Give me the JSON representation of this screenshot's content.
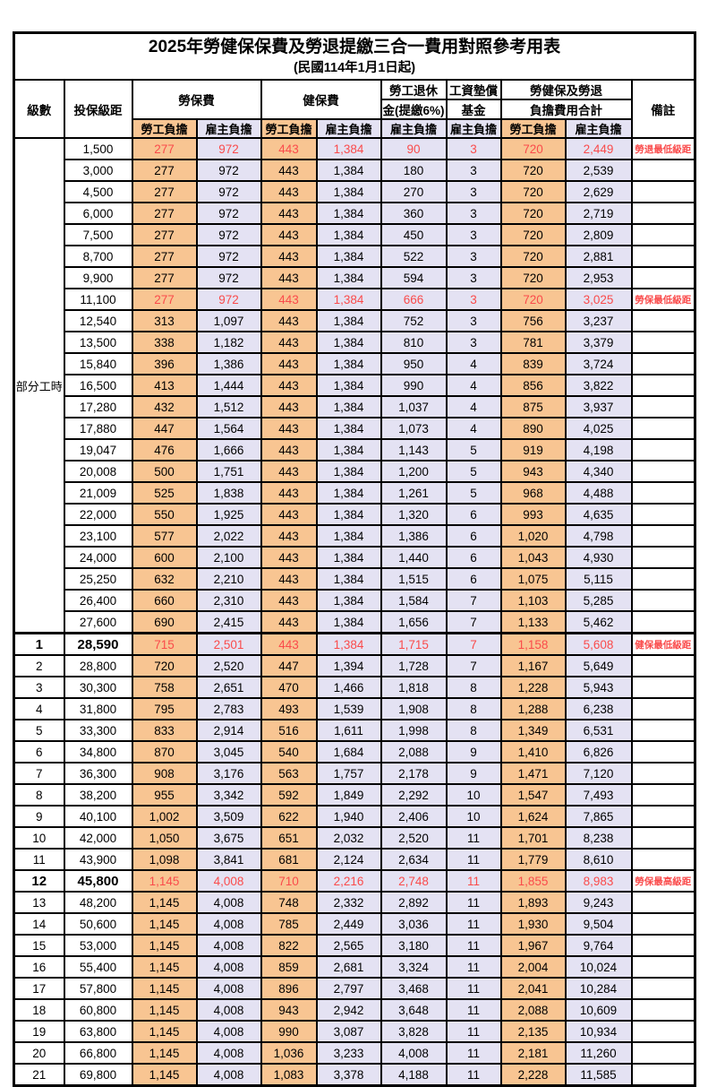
{
  "title": "2025年勞健保保費及勞退提繳三合一費用對照參考用表",
  "subtitle": "(民國114年1月1日起)",
  "colors": {
    "worker_bg": "#F8C592",
    "employer_bg": "#E4E2F3",
    "red_text": "#FA4B4B",
    "border": "#000000"
  },
  "header": {
    "level": "級數",
    "bracket": "投保級距",
    "labor": "勞保費",
    "health": "健保費",
    "pension_line1": "勞工退休",
    "pension_line2": "金(提繳6%)",
    "wage_fund_line1": "工資墊償",
    "wage_fund_line2": "基金",
    "total_line1": "勞健保及勞退",
    "total_line2": "負擔費用合計",
    "worker": "勞工負擔",
    "employer": "雇主負擔",
    "note": "備註"
  },
  "table": {
    "part_time_label": "部分工時",
    "value_columns": [
      "勞保費勞工負擔",
      "勞保費雇主負擔",
      "健保費勞工負擔",
      "健保費雇主負擔",
      "勞工退休金雇主負擔",
      "工資墊償基金雇主負擔",
      "合計勞工負擔",
      "合計雇主負擔"
    ],
    "rows": [
      {
        "lv": "",
        "br": "1,500",
        "v": [
          "277",
          "972",
          "443",
          "1,384",
          "90",
          "3",
          "720",
          "2,449"
        ],
        "note": "勞退最低級距",
        "red": true
      },
      {
        "lv": "",
        "br": "3,000",
        "v": [
          "277",
          "972",
          "443",
          "1,384",
          "180",
          "3",
          "720",
          "2,539"
        ],
        "note": ""
      },
      {
        "lv": "",
        "br": "4,500",
        "v": [
          "277",
          "972",
          "443",
          "1,384",
          "270",
          "3",
          "720",
          "2,629"
        ],
        "note": ""
      },
      {
        "lv": "",
        "br": "6,000",
        "v": [
          "277",
          "972",
          "443",
          "1,384",
          "360",
          "3",
          "720",
          "2,719"
        ],
        "note": ""
      },
      {
        "lv": "",
        "br": "7,500",
        "v": [
          "277",
          "972",
          "443",
          "1,384",
          "450",
          "3",
          "720",
          "2,809"
        ],
        "note": ""
      },
      {
        "lv": "",
        "br": "8,700",
        "v": [
          "277",
          "972",
          "443",
          "1,384",
          "522",
          "3",
          "720",
          "2,881"
        ],
        "note": ""
      },
      {
        "lv": "",
        "br": "9,900",
        "v": [
          "277",
          "972",
          "443",
          "1,384",
          "594",
          "3",
          "720",
          "2,953"
        ],
        "note": ""
      },
      {
        "lv": "",
        "br": "11,100",
        "v": [
          "277",
          "972",
          "443",
          "1,384",
          "666",
          "3",
          "720",
          "3,025"
        ],
        "note": "勞保最低級距",
        "red": true
      },
      {
        "lv": "",
        "br": "12,540",
        "v": [
          "313",
          "1,097",
          "443",
          "1,384",
          "752",
          "3",
          "756",
          "3,237"
        ],
        "note": ""
      },
      {
        "lv": "",
        "br": "13,500",
        "v": [
          "338",
          "1,182",
          "443",
          "1,384",
          "810",
          "3",
          "781",
          "3,379"
        ],
        "note": ""
      },
      {
        "lv": "",
        "br": "15,840",
        "v": [
          "396",
          "1,386",
          "443",
          "1,384",
          "950",
          "4",
          "839",
          "3,724"
        ],
        "note": ""
      },
      {
        "lv": "",
        "br": "16,500",
        "v": [
          "413",
          "1,444",
          "443",
          "1,384",
          "990",
          "4",
          "856",
          "3,822"
        ],
        "note": ""
      },
      {
        "lv": "",
        "br": "17,280",
        "v": [
          "432",
          "1,512",
          "443",
          "1,384",
          "1,037",
          "4",
          "875",
          "3,937"
        ],
        "note": ""
      },
      {
        "lv": "",
        "br": "17,880",
        "v": [
          "447",
          "1,564",
          "443",
          "1,384",
          "1,073",
          "4",
          "890",
          "4,025"
        ],
        "note": ""
      },
      {
        "lv": "",
        "br": "19,047",
        "v": [
          "476",
          "1,666",
          "443",
          "1,384",
          "1,143",
          "5",
          "919",
          "4,198"
        ],
        "note": ""
      },
      {
        "lv": "",
        "br": "20,008",
        "v": [
          "500",
          "1,751",
          "443",
          "1,384",
          "1,200",
          "5",
          "943",
          "4,340"
        ],
        "note": ""
      },
      {
        "lv": "",
        "br": "21,009",
        "v": [
          "525",
          "1,838",
          "443",
          "1,384",
          "1,261",
          "5",
          "968",
          "4,488"
        ],
        "note": ""
      },
      {
        "lv": "",
        "br": "22,000",
        "v": [
          "550",
          "1,925",
          "443",
          "1,384",
          "1,320",
          "6",
          "993",
          "4,635"
        ],
        "note": ""
      },
      {
        "lv": "",
        "br": "23,100",
        "v": [
          "577",
          "2,022",
          "443",
          "1,384",
          "1,386",
          "6",
          "1,020",
          "4,798"
        ],
        "note": ""
      },
      {
        "lv": "",
        "br": "24,000",
        "v": [
          "600",
          "2,100",
          "443",
          "1,384",
          "1,440",
          "6",
          "1,043",
          "4,930"
        ],
        "note": ""
      },
      {
        "lv": "",
        "br": "25,250",
        "v": [
          "632",
          "2,210",
          "443",
          "1,384",
          "1,515",
          "6",
          "1,075",
          "5,115"
        ],
        "note": ""
      },
      {
        "lv": "",
        "br": "26,400",
        "v": [
          "660",
          "2,310",
          "443",
          "1,384",
          "1,584",
          "7",
          "1,103",
          "5,285"
        ],
        "note": ""
      },
      {
        "lv": "",
        "br": "27,600",
        "v": [
          "690",
          "2,415",
          "443",
          "1,384",
          "1,656",
          "7",
          "1,133",
          "5,462"
        ],
        "note": ""
      },
      {
        "lv": "1",
        "br": "28,590",
        "v": [
          "715",
          "2,501",
          "443",
          "1,384",
          "1,715",
          "7",
          "1,158",
          "5,608"
        ],
        "note": "健保最低級距",
        "red": true,
        "hl": true,
        "thick": true
      },
      {
        "lv": "2",
        "br": "28,800",
        "v": [
          "720",
          "2,520",
          "447",
          "1,394",
          "1,728",
          "7",
          "1,167",
          "5,649"
        ],
        "note": ""
      },
      {
        "lv": "3",
        "br": "30,300",
        "v": [
          "758",
          "2,651",
          "470",
          "1,466",
          "1,818",
          "8",
          "1,228",
          "5,943"
        ],
        "note": ""
      },
      {
        "lv": "4",
        "br": "31,800",
        "v": [
          "795",
          "2,783",
          "493",
          "1,539",
          "1,908",
          "8",
          "1,288",
          "6,238"
        ],
        "note": ""
      },
      {
        "lv": "5",
        "br": "33,300",
        "v": [
          "833",
          "2,914",
          "516",
          "1,611",
          "1,998",
          "8",
          "1,349",
          "6,531"
        ],
        "note": ""
      },
      {
        "lv": "6",
        "br": "34,800",
        "v": [
          "870",
          "3,045",
          "540",
          "1,684",
          "2,088",
          "9",
          "1,410",
          "6,826"
        ],
        "note": ""
      },
      {
        "lv": "7",
        "br": "36,300",
        "v": [
          "908",
          "3,176",
          "563",
          "1,757",
          "2,178",
          "9",
          "1,471",
          "7,120"
        ],
        "note": ""
      },
      {
        "lv": "8",
        "br": "38,200",
        "v": [
          "955",
          "3,342",
          "592",
          "1,849",
          "2,292",
          "10",
          "1,547",
          "7,493"
        ],
        "note": ""
      },
      {
        "lv": "9",
        "br": "40,100",
        "v": [
          "1,002",
          "3,509",
          "622",
          "1,940",
          "2,406",
          "10",
          "1,624",
          "7,865"
        ],
        "note": ""
      },
      {
        "lv": "10",
        "br": "42,000",
        "v": [
          "1,050",
          "3,675",
          "651",
          "2,032",
          "2,520",
          "11",
          "1,701",
          "8,238"
        ],
        "note": ""
      },
      {
        "lv": "11",
        "br": "43,900",
        "v": [
          "1,098",
          "3,841",
          "681",
          "2,124",
          "2,634",
          "11",
          "1,779",
          "8,610"
        ],
        "note": ""
      },
      {
        "lv": "12",
        "br": "45,800",
        "v": [
          "1,145",
          "4,008",
          "710",
          "2,216",
          "2,748",
          "11",
          "1,855",
          "8,983"
        ],
        "note": "勞保最高級距",
        "red": true,
        "hl": true
      },
      {
        "lv": "13",
        "br": "48,200",
        "v": [
          "1,145",
          "4,008",
          "748",
          "2,332",
          "2,892",
          "11",
          "1,893",
          "9,243"
        ],
        "note": ""
      },
      {
        "lv": "14",
        "br": "50,600",
        "v": [
          "1,145",
          "4,008",
          "785",
          "2,449",
          "3,036",
          "11",
          "1,930",
          "9,504"
        ],
        "note": ""
      },
      {
        "lv": "15",
        "br": "53,000",
        "v": [
          "1,145",
          "4,008",
          "822",
          "2,565",
          "3,180",
          "11",
          "1,967",
          "9,764"
        ],
        "note": ""
      },
      {
        "lv": "16",
        "br": "55,400",
        "v": [
          "1,145",
          "4,008",
          "859",
          "2,681",
          "3,324",
          "11",
          "2,004",
          "10,024"
        ],
        "note": ""
      },
      {
        "lv": "17",
        "br": "57,800",
        "v": [
          "1,145",
          "4,008",
          "896",
          "2,797",
          "3,468",
          "11",
          "2,041",
          "10,284"
        ],
        "note": ""
      },
      {
        "lv": "18",
        "br": "60,800",
        "v": [
          "1,145",
          "4,008",
          "943",
          "2,942",
          "3,648",
          "11",
          "2,088",
          "10,609"
        ],
        "note": ""
      },
      {
        "lv": "19",
        "br": "63,800",
        "v": [
          "1,145",
          "4,008",
          "990",
          "3,087",
          "3,828",
          "11",
          "2,135",
          "10,934"
        ],
        "note": ""
      },
      {
        "lv": "20",
        "br": "66,800",
        "v": [
          "1,145",
          "4,008",
          "1,036",
          "3,233",
          "4,008",
          "11",
          "2,181",
          "11,260"
        ],
        "note": ""
      },
      {
        "lv": "21",
        "br": "69,800",
        "v": [
          "1,145",
          "4,008",
          "1,083",
          "3,378",
          "4,188",
          "11",
          "2,228",
          "11,585"
        ],
        "note": ""
      }
    ]
  }
}
